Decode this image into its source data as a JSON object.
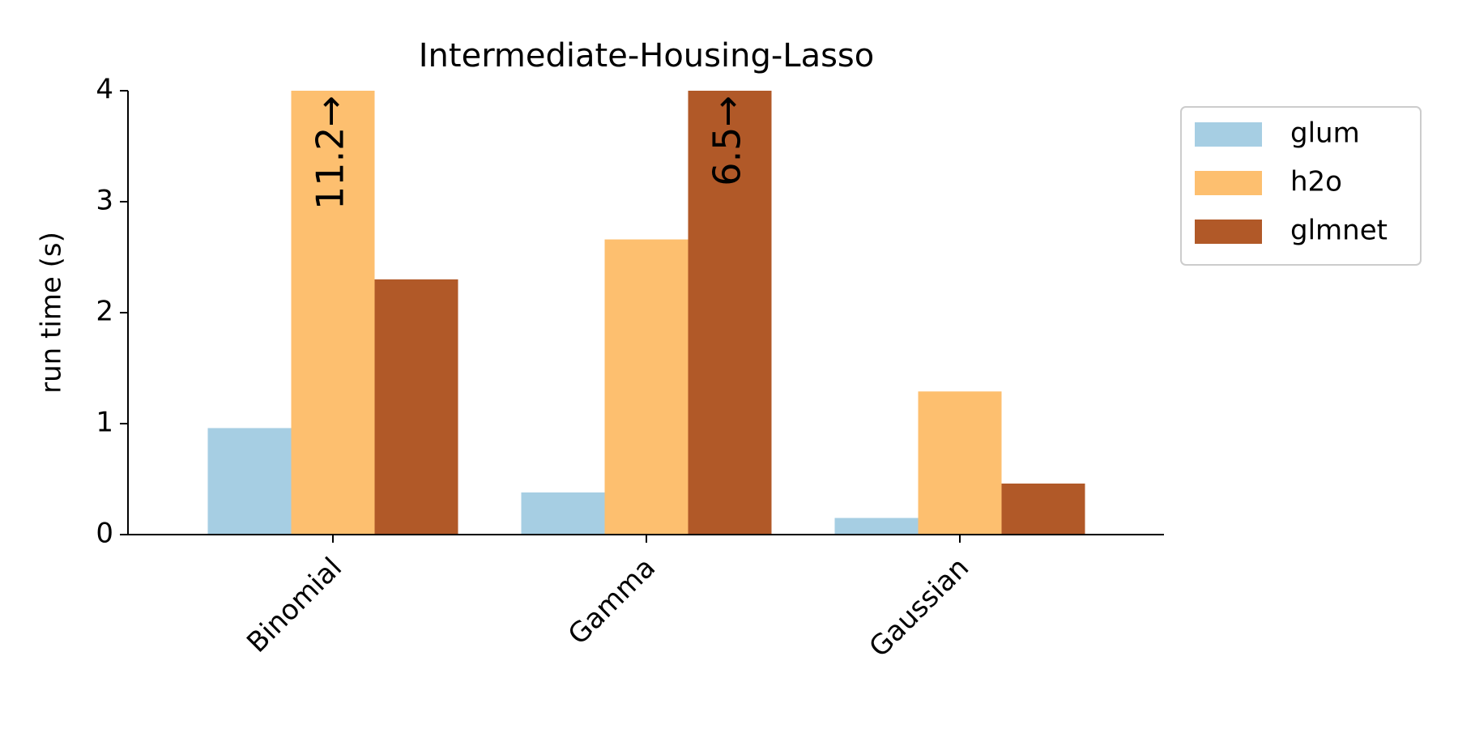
{
  "chart_data": {
    "type": "bar",
    "title": "Intermediate-Housing-Lasso",
    "y_label": "run time (s)",
    "categories": [
      "Binomial",
      "Gamma",
      "Gaussian"
    ],
    "series": [
      {
        "name": "glum",
        "color": "#a6cee3",
        "values": [
          0.96,
          0.38,
          0.15
        ]
      },
      {
        "name": "h2o",
        "color": "#fdbf6f",
        "values": [
          11.2,
          2.66,
          1.29
        ],
        "value_labels": [
          "11.2→",
          null,
          null
        ]
      },
      {
        "name": "glmnet",
        "color": "#b15928",
        "values": [
          2.3,
          6.5,
          0.46
        ],
        "value_labels": [
          null,
          "6.5→",
          null
        ]
      }
    ],
    "ylim": [
      0,
      4
    ],
    "yticks": [
      0,
      1,
      2,
      3,
      4
    ],
    "grid": false,
    "legend": "outside upper right"
  }
}
